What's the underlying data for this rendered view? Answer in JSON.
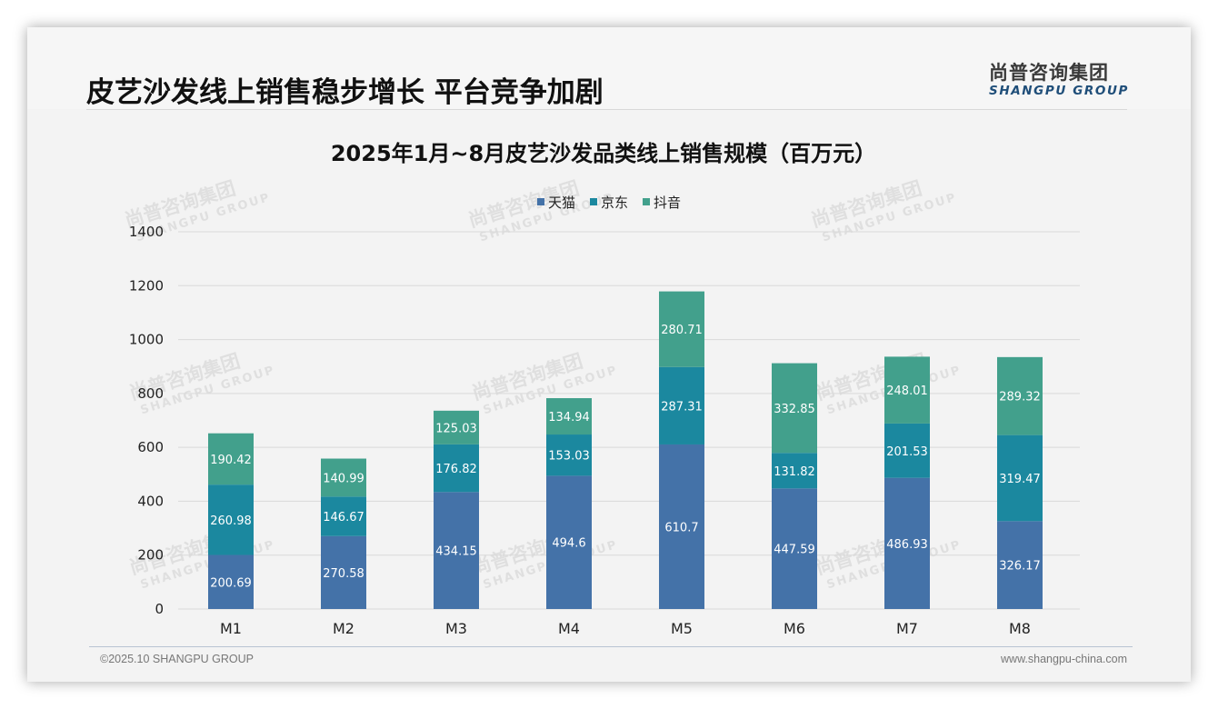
{
  "header": {
    "title": "皮艺沙发线上销售稳步增长 平台竞争加剧",
    "logo_cn": "尚普咨询集团",
    "logo_en": "SHANGPU GROUP"
  },
  "footer": {
    "copyright": "©2025.10 SHANGPU GROUP",
    "website": "www.shangpu-china.com"
  },
  "watermark": {
    "cn": "尚普咨询集团",
    "en": "SHANGPU GROUP"
  },
  "colors": {
    "tmall": "#4472a8",
    "jd": "#1b889f",
    "douyin": "#42a08c",
    "background": "#f3f3f3",
    "gridline": "#d9d9d9"
  },
  "chart_data": {
    "type": "bar",
    "stacked": true,
    "title": "2025年1月~8月皮艺沙发品类线上销售规模（百万元）",
    "xlabel": "",
    "ylabel": "",
    "ylim": [
      0,
      1400
    ],
    "yticks": [
      0,
      200,
      400,
      600,
      800,
      1000,
      1200,
      1400
    ],
    "grid": true,
    "legend_position": "top-center",
    "categories": [
      "M1",
      "M2",
      "M3",
      "M4",
      "M5",
      "M6",
      "M7",
      "M8"
    ],
    "series": [
      {
        "name": "天猫",
        "color": "#4472a8",
        "values": [
          200.69,
          270.58,
          434.15,
          494.6,
          610.7,
          447.59,
          486.93,
          326.17
        ],
        "labels": [
          "200.69",
          "270.58",
          "434.15",
          "494.6",
          "610.7",
          "447.59",
          "486.93",
          "326.17"
        ]
      },
      {
        "name": "京东",
        "color": "#1b889f",
        "values": [
          260.98,
          146.67,
          176.82,
          153.03,
          287.31,
          131.82,
          201.53,
          319.47
        ],
        "labels": [
          "260.98",
          "146.67",
          "176.82",
          "153.03",
          "287.31",
          "131.82",
          "201.53",
          "319.47"
        ]
      },
      {
        "name": "抖音",
        "color": "#42a08c",
        "values": [
          190.42,
          140.99,
          125.03,
          134.94,
          280.71,
          332.85,
          248.01,
          289.32
        ],
        "labels": [
          "190.42",
          "140.99",
          "125.03",
          "134.94",
          "280.71",
          "332.85",
          "248.01",
          "289.32"
        ]
      }
    ]
  }
}
